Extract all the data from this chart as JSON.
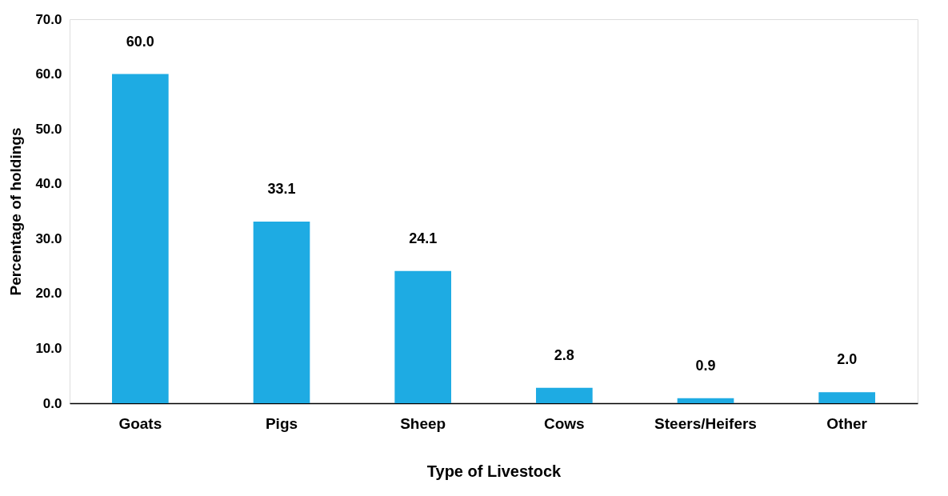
{
  "chart_data": {
    "type": "bar",
    "xlabel": "Type of Livestock",
    "ylabel": "Percentage of holdings",
    "categories": [
      "Goats",
      "Pigs",
      "Sheep",
      "Cows",
      "Steers/Heifers",
      "Other"
    ],
    "values": [
      60.0,
      33.1,
      24.1,
      2.8,
      0.9,
      2.0
    ],
    "color": "#1eabe3",
    "ylim": [
      0,
      70
    ],
    "yticks": [
      {
        "value": 0,
        "label": "0.0"
      },
      {
        "value": 10,
        "label": "10.0"
      },
      {
        "value": 20,
        "label": "20.0"
      },
      {
        "value": 30,
        "label": "30.0"
      },
      {
        "value": 40,
        "label": "40.0"
      },
      {
        "value": 50,
        "label": "50.0"
      },
      {
        "value": 60,
        "label": "60.0"
      },
      {
        "value": 70,
        "label": "70.0"
      }
    ],
    "value_labels": [
      "60.0",
      "33.1",
      "24.1",
      "2.8",
      "0.9",
      "2.0"
    ],
    "grid": false
  }
}
